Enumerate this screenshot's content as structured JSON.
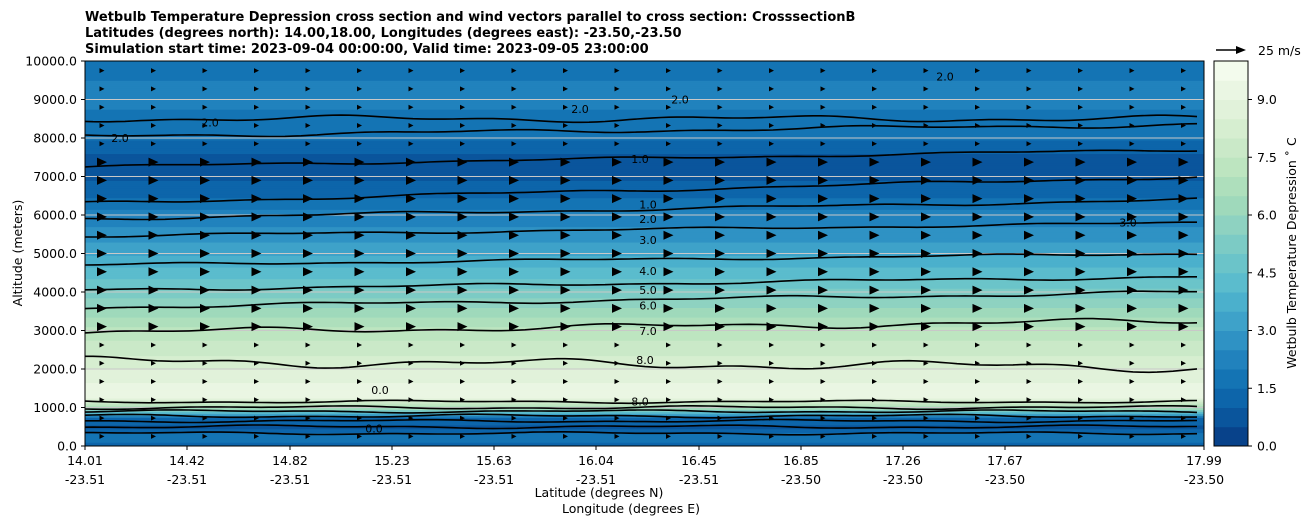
{
  "chart_data": {
    "type": "contour",
    "title_lines": [
      "Wetbulb Temperature Depression cross section and wind vectors parallel to cross section: CrosssectionB",
      "Latitudes (degrees north): 14.00,18.00, Longitudes (degrees east): -23.50,-23.50",
      "Simulation start time: 2023-09-04 00:00:00, Valid time: 2023-09-05 23:00:00"
    ],
    "ylabel": "Altitude (meters)",
    "xlabel_lat": "Latitude (degrees N)",
    "xlabel_lon": "Longitude (degrees E)",
    "ylim": [
      0,
      10000
    ],
    "yticks": [
      "0.0",
      "1000.0",
      "2000.0",
      "3000.0",
      "4000.0",
      "5000.0",
      "6000.0",
      "7000.0",
      "8000.0",
      "9000.0",
      "10000.0"
    ],
    "xticks": [
      {
        "lat": "14.01",
        "lon": "-23.51"
      },
      {
        "lat": "14.42",
        "lon": "-23.51"
      },
      {
        "lat": "14.82",
        "lon": "-23.51"
      },
      {
        "lat": "15.23",
        "lon": "-23.51"
      },
      {
        "lat": "15.63",
        "lon": "-23.51"
      },
      {
        "lat": "16.04",
        "lon": "-23.51"
      },
      {
        "lat": "16.45",
        "lon": "-23.51"
      },
      {
        "lat": "16.85",
        "lon": "-23.50"
      },
      {
        "lat": "17.26",
        "lon": "-23.50"
      },
      {
        "lat": "17.67",
        "lon": "-23.50"
      },
      {
        "lat": "17.99",
        "lon": "-23.50"
      }
    ],
    "colorbar": {
      "label": "Wetbulb Temperature Depression ˚ C",
      "range": [
        0,
        10
      ],
      "ticks": [
        "0.0",
        "1.5",
        "3.0",
        "4.5",
        "6.0",
        "7.5",
        "9.0"
      ],
      "colors": [
        "#08428a",
        "#0a559c",
        "#0d65aa",
        "#1474b4",
        "#2182bd",
        "#2f92c4",
        "#3ea2c9",
        "#4bb0cc",
        "#5bbccd",
        "#6bc4c9",
        "#7ccbc5",
        "#8ed2c1",
        "#9fd9bb",
        "#aedfbc",
        "#bde5c0",
        "#cae9c8",
        "#d6eed0",
        "#e1f2da",
        "#eaf6e3",
        "#f3fbed"
      ]
    },
    "wind_reference": "25 m/s",
    "contour_labels": [
      "1.0",
      "1.0",
      "2.0",
      "3.0",
      "4.0",
      "5.0",
      "6.0",
      "7.0",
      "8.0",
      "8.0",
      "2.0",
      "2.0",
      "2.0",
      "2.0",
      "2.0",
      "3.0",
      "0.0",
      "0.0"
    ],
    "profile": {
      "altitude_m": [
        0,
        250,
        500,
        750,
        1000,
        1250,
        1500,
        2000,
        2500,
        3000,
        3500,
        4000,
        4500,
        5000,
        5500,
        6000,
        6500,
        7000,
        7500,
        8000,
        8500,
        9000,
        9500,
        10000
      ],
      "depression_c": [
        1.2,
        2.0,
        0.8,
        1.5,
        6.5,
        9.0,
        9.2,
        8.5,
        7.8,
        7.2,
        6.2,
        5.2,
        4.2,
        3.4,
        2.7,
        2.2,
        1.4,
        0.9,
        0.8,
        1.6,
        1.9,
        2.1,
        2.0,
        1.9
      ]
    }
  }
}
